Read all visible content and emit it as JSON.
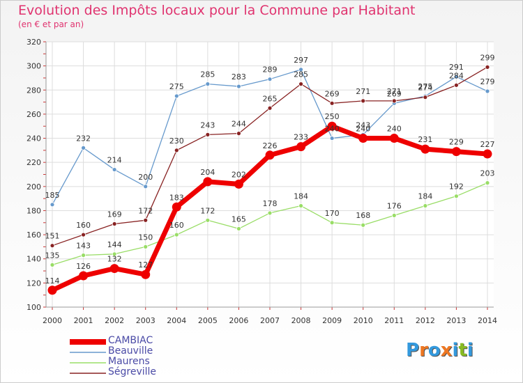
{
  "header": {
    "title": "Evolution des Impôts locaux pour la Commune par Habitant",
    "subtitle": "(en € et par an)"
  },
  "logo": {
    "text": "Proxiti",
    "letters": [
      "P",
      "r",
      "o",
      "x",
      "i",
      "t",
      "i"
    ],
    "colors": [
      "#3399dd",
      "#ee7722",
      "#3399dd",
      "#ee7722",
      "#3399dd",
      "#88bb22",
      "#3399dd"
    ]
  },
  "chart_data": {
    "type": "line",
    "title": "Evolution des Impôts locaux pour la Commune par Habitant",
    "subtitle": "(en € et par an)",
    "xlabel": "",
    "ylabel": "",
    "x": [
      2000,
      2001,
      2002,
      2003,
      2004,
      2005,
      2006,
      2007,
      2008,
      2009,
      2010,
      2011,
      2012,
      2013,
      2014
    ],
    "x_labels": [
      "2000",
      "2001",
      "2002",
      "2003",
      "2004",
      "2005",
      "2006",
      "2007",
      "2008",
      "2009",
      "2010",
      "2011",
      "2012",
      "2013",
      "2014"
    ],
    "ylim": [
      100,
      320
    ],
    "y_ticks": [
      100,
      120,
      140,
      160,
      180,
      200,
      220,
      240,
      260,
      280,
      300,
      320
    ],
    "grid": true,
    "series": [
      {
        "name": "CAMBIAC",
        "color": "#ee0000",
        "emphasis": true,
        "values": [
          114,
          126,
          132,
          127,
          183,
          204,
          202,
          226,
          233,
          250,
          240,
          240,
          231,
          229,
          227
        ]
      },
      {
        "name": "Beauville",
        "color": "#6699cc",
        "values": [
          185,
          232,
          214,
          200,
          275,
          285,
          283,
          289,
          297,
          240,
          243,
          269,
          275,
          291,
          279
        ]
      },
      {
        "name": "Maurens",
        "color": "#99dd66",
        "values": [
          135,
          143,
          144,
          150,
          160,
          172,
          165,
          178,
          184,
          170,
          168,
          176,
          184,
          192,
          203
        ]
      },
      {
        "name": "Ségreville",
        "color": "#882222",
        "values": [
          151,
          160,
          169,
          172,
          230,
          243,
          244,
          265,
          285,
          269,
          271,
          271,
          274,
          284,
          299
        ]
      }
    ],
    "legend_position": "bottom-left"
  }
}
